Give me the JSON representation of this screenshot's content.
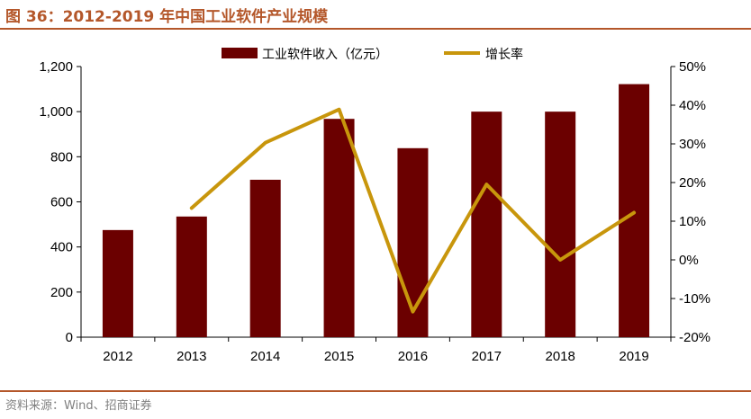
{
  "title": "图 36：2012-2019 年中国工业软件产业规模",
  "source": "资料来源：Wind、招商证券",
  "colors": {
    "bar": "#6b0000",
    "line": "#c8960c",
    "accent": "#b4572a"
  },
  "chart_data": {
    "type": "bar",
    "categories": [
      "2012",
      "2013",
      "2014",
      "2015",
      "2016",
      "2017",
      "2018",
      "2019"
    ],
    "series": [
      {
        "name": "工业软件收入（亿元）",
        "type": "bar",
        "axis": "left",
        "values": [
          475,
          535,
          698,
          968,
          838,
          1000,
          1000,
          1122
        ]
      },
      {
        "name": "增长率",
        "type": "line",
        "axis": "right",
        "values": [
          null,
          0.134,
          0.303,
          0.389,
          -0.134,
          0.195,
          0.0,
          0.122
        ]
      }
    ],
    "y_left": {
      "min": 0,
      "max": 1200,
      "step": 200,
      "tick_labels": [
        "0",
        "200",
        "400",
        "600",
        "800",
        "1,000",
        "1,200"
      ]
    },
    "y_right": {
      "min": -0.2,
      "max": 0.5,
      "step": 0.1,
      "tick_labels": [
        "-20%",
        "-10%",
        "0%",
        "10%",
        "20%",
        "30%",
        "40%",
        "50%"
      ]
    },
    "legend": "top-center",
    "grid": false
  }
}
